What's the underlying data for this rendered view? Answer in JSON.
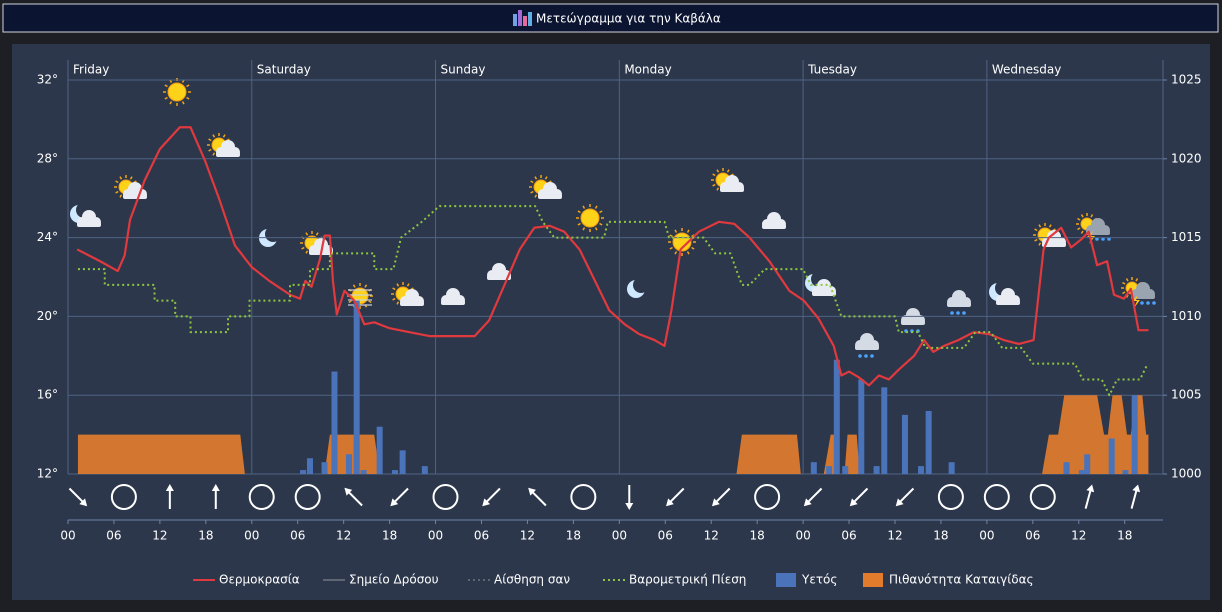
{
  "chart_data": {
    "type": "combo",
    "title": "Μετεώγραμμα για την Καβάλα",
    "xlim": [
      0,
      143
    ],
    "xticks": [
      {
        "value": 0,
        "label": "00"
      },
      {
        "value": 6,
        "label": "06"
      },
      {
        "value": 12,
        "label": "12"
      },
      {
        "value": 18,
        "label": "18"
      },
      {
        "value": 24,
        "label": "00"
      },
      {
        "value": 30,
        "label": "06"
      },
      {
        "value": 36,
        "label": "12"
      },
      {
        "value": 42,
        "label": "18"
      },
      {
        "value": 48,
        "label": "00"
      },
      {
        "value": 54,
        "label": "06"
      },
      {
        "value": 60,
        "label": "12"
      },
      {
        "value": 66,
        "label": "18"
      },
      {
        "value": 72,
        "label": "00"
      },
      {
        "value": 78,
        "label": "06"
      },
      {
        "value": 84,
        "label": "12"
      },
      {
        "value": 90,
        "label": "18"
      },
      {
        "value": 96,
        "label": "00"
      },
      {
        "value": 102,
        "label": "06"
      },
      {
        "value": 108,
        "label": "12"
      },
      {
        "value": 114,
        "label": "18"
      },
      {
        "value": 120,
        "label": "00"
      },
      {
        "value": 126,
        "label": "06"
      },
      {
        "value": 132,
        "label": "12"
      },
      {
        "value": 138,
        "label": "18"
      }
    ],
    "day_labels": [
      {
        "value": 0,
        "label": "Friday"
      },
      {
        "value": 24,
        "label": "Saturday"
      },
      {
        "value": 48,
        "label": "Sunday"
      },
      {
        "value": 72,
        "label": "Monday"
      },
      {
        "value": 96,
        "label": "Tuesday"
      },
      {
        "value": 120,
        "label": "Wednesday"
      }
    ],
    "ylim": [
      12,
      32
    ],
    "yticks": [
      {
        "value": 12,
        "label": "12°"
      },
      {
        "value": 16,
        "label": "16°"
      },
      {
        "value": 20,
        "label": "20°"
      },
      {
        "value": 24,
        "label": "24°"
      },
      {
        "value": 28,
        "label": "28°"
      },
      {
        "value": 32,
        "label": "32°"
      }
    ],
    "y2lim": [
      1000,
      1025
    ],
    "y2ticks": [
      1000,
      1005,
      1010,
      1015,
      1020,
      1025
    ],
    "y3lim": [
      0,
      10
    ],
    "y4lim": [
      0,
      100
    ],
    "grid": true,
    "legend": "bottom",
    "series": [
      {
        "name": "Θερμοκρασία",
        "color": "#e0393e",
        "type": "line",
        "x": [
          1.2,
          4.2,
          6.5,
          7.4,
          8.1,
          10,
          12,
          14.6,
          16,
          17.9,
          19.8,
          21.8,
          24,
          26.3,
          29,
          30.3,
          31,
          31.8,
          32.9,
          33.5,
          34.2,
          34.6,
          35.1,
          36.1,
          37.4,
          38.7,
          40,
          42,
          44.6,
          47.2,
          49.8,
          53.1,
          55,
          57,
          59,
          60.9,
          62.9,
          64.8,
          66.8,
          68.7,
          70.7,
          72.7,
          74.6,
          76.6,
          77.9,
          78.8,
          80,
          82.4,
          85,
          87,
          89,
          91.6,
          94.2,
          96.1,
          98,
          100,
          101,
          102,
          103.3,
          104.6,
          105.9,
          107.2,
          108.5,
          110.5,
          111.8,
          113,
          114.4,
          116.3,
          118.3,
          120.3,
          122.2,
          124.2,
          126.1,
          127.4,
          128.1,
          129.7,
          131,
          132.3,
          133.3,
          134.4,
          135.7,
          136.6,
          137.9,
          138.8,
          139.8,
          141.1
        ],
        "values": [
          23.4,
          22.8,
          22.3,
          23.1,
          24.9,
          26.9,
          28.5,
          29.6,
          29.6,
          27.9,
          25.9,
          23.6,
          22.5,
          21.8,
          21.1,
          20.9,
          21.8,
          21.5,
          22.9,
          24.1,
          24.1,
          21.8,
          20.1,
          21.3,
          20.8,
          19.6,
          19.7,
          19.4,
          19.2,
          19.0,
          19.0,
          19.0,
          19.8,
          21.6,
          23.4,
          24.5,
          24.6,
          24.3,
          23.4,
          21.9,
          20.3,
          19.6,
          19.1,
          18.8,
          18.5,
          20.3,
          23.4,
          24.3,
          24.8,
          24.7,
          24.0,
          22.8,
          21.3,
          20.8,
          19.9,
          18.5,
          17.0,
          17.2,
          16.9,
          16.5,
          17.0,
          16.8,
          17.3,
          18.0,
          18.8,
          18.2,
          18.5,
          18.8,
          19.2,
          19.1,
          18.8,
          18.6,
          18.8,
          23.4,
          24.0,
          24.5,
          23.5,
          23.9,
          24.3,
          22.6,
          22.8,
          21.1,
          20.9,
          21.4,
          19.3,
          19.3
        ]
      },
      {
        "name": "Σημείο Δρόσου",
        "color": "#6a6a6a",
        "type": "line",
        "hidden": true
      },
      {
        "name": "Αίσθηση σαν",
        "color": "#6a6a6a",
        "type": "line",
        "dashed": true,
        "hidden": true
      },
      {
        "name": "Βαρομετρική Πίεση",
        "color": "#8fc63f",
        "type": "line",
        "dashed": true,
        "axis": "y2",
        "x": [
          1.3,
          4.8,
          4.8,
          11.3,
          11.3,
          14,
          14,
          16,
          16,
          20.9,
          20.9,
          23.7,
          23.7,
          29,
          29,
          31.6,
          31.6,
          34.2,
          34.2,
          40,
          40,
          42.5,
          43.5,
          46.2,
          48.5,
          61,
          62,
          63.5,
          70,
          70.5,
          77.9,
          78.5,
          83,
          84.5,
          86.5,
          88,
          89,
          91,
          96,
          97,
          99.5,
          101,
          108,
          108.5,
          111,
          112,
          117,
          118.5,
          120.5,
          122,
          124.5,
          126,
          131.5,
          132.5,
          135,
          136,
          137,
          140,
          141
        ],
        "values": [
          1013,
          1013,
          1012,
          1012,
          1011,
          1011,
          1010,
          1010,
          1009,
          1009,
          1010,
          1010,
          1011,
          1011,
          1012,
          1012,
          1013,
          1013,
          1014,
          1014,
          1013,
          1013,
          1015,
          1016,
          1017,
          1017,
          1016,
          1015,
          1015,
          1016,
          1016,
          1015,
          1015,
          1014,
          1014,
          1012,
          1012,
          1013,
          1013,
          1012,
          1012,
          1010,
          1010,
          1009,
          1009,
          1008,
          1008,
          1009,
          1009,
          1008,
          1008,
          1007,
          1007,
          1006,
          1006,
          1005,
          1006,
          1006,
          1007
        ]
      },
      {
        "name": "Υετός",
        "color": "#4a73b9",
        "type": "bar",
        "axis": "y3",
        "x": [
          30.7,
          31.6,
          33.5,
          34.8,
          36.7,
          37.7,
          38.6,
          40.7,
          42.7,
          43.7,
          46.6,
          97.4,
          99.4,
          100.4,
          101.5,
          103.6,
          105.6,
          106.6,
          109.3,
          111.4,
          112.4,
          115.4,
          130.4,
          132.4,
          133.1,
          136.3,
          138.1,
          139.3
        ],
        "values": [
          0.1,
          0.4,
          0.3,
          2.6,
          0.5,
          4.4,
          0.1,
          1.2,
          0.1,
          0.6,
          0.2,
          0.3,
          0.2,
          2.9,
          0.2,
          2.4,
          0.2,
          2.2,
          1.5,
          0.2,
          1.6,
          0.3,
          0.3,
          0.1,
          0.5,
          0.9,
          0.1,
          2.0
        ]
      },
      {
        "name": "Πιθανότητα Καταιγίδας",
        "color": "#e27c2c",
        "type": "area",
        "axis": "y4",
        "x": [
          1.3,
          1.3,
          22.5,
          23.1,
          33.5,
          34.2,
          40,
          40.7,
          87.3,
          88,
          95.2,
          95.7,
          98.7,
          99.6,
          100.2,
          100.6,
          101.4,
          101.8,
          103,
          103.4,
          127.2,
          128.1,
          129.3,
          130.1,
          134.4,
          135.3,
          135.8,
          136.4,
          137.6,
          138.3,
          138.8,
          139.5,
          140.3,
          140.8,
          141.1,
          141.1
        ],
        "values": [
          0,
          10,
          10,
          0,
          0,
          10,
          10,
          0,
          0,
          10,
          10,
          0,
          0,
          10,
          10,
          0,
          0,
          10,
          10,
          0,
          0,
          10,
          10,
          20,
          20,
          10,
          10,
          20,
          20,
          10,
          10,
          20,
          20,
          10,
          10,
          0
        ]
      }
    ]
  }
}
